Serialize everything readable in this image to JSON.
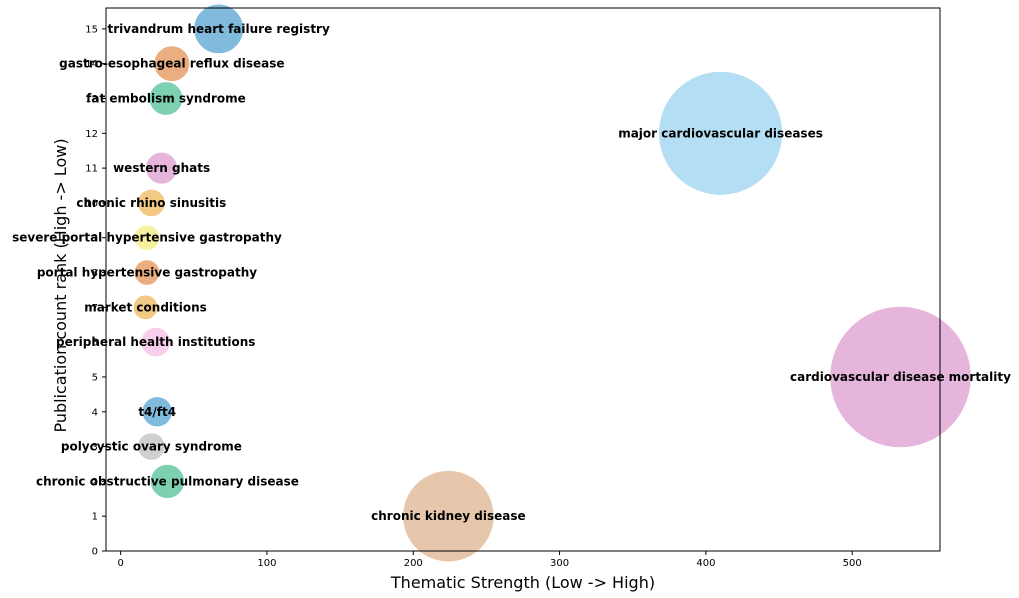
{
  "chart_data": {
    "type": "scatter",
    "title": "",
    "xlabel": "Thematic Strength (Low -> High)",
    "ylabel": "Publication count rank (High -> Low)",
    "xlim": [
      -10,
      560
    ],
    "ylim": [
      0,
      15.6
    ],
    "xticks": [
      0,
      100,
      200,
      300,
      400,
      500
    ],
    "yticks": [
      0,
      1,
      2,
      3,
      4,
      5,
      6,
      7,
      8,
      9,
      10,
      11,
      12,
      13,
      14,
      15
    ],
    "grid": false,
    "bubble_size_encodes": "thematic strength",
    "points": [
      {
        "label": "trivandrum heart failure registry",
        "x": 67,
        "y": 15,
        "color": "#6aaed6"
      },
      {
        "label": "gastro-esophageal reflux disease",
        "x": 35,
        "y": 14,
        "color": "#e8a06a"
      },
      {
        "label": "fat embolism syndrome",
        "x": 31,
        "y": 13,
        "color": "#66c9a2"
      },
      {
        "label": "major cardiovascular diseases",
        "x": 410,
        "y": 12,
        "color": "#a6d8f2"
      },
      {
        "label": "western ghats",
        "x": 28,
        "y": 11,
        "color": "#e0a8d6"
      },
      {
        "label": "chronic rhino sinusitis",
        "x": 21,
        "y": 10,
        "color": "#f0c070"
      },
      {
        "label": "severe portal hypertensive gastropathy",
        "x": 18,
        "y": 9,
        "color": "#f6ee8e"
      },
      {
        "label": "portal hypertensive gastropathy",
        "x": 18,
        "y": 8,
        "color": "#e8a06a"
      },
      {
        "label": "market conditions",
        "x": 17,
        "y": 7,
        "color": "#f0c070"
      },
      {
        "label": "peripheral health institutions",
        "x": 24,
        "y": 6,
        "color": "#f7c6ea"
      },
      {
        "label": "cardiovascular disease mortality",
        "x": 533,
        "y": 5,
        "color": "#e0a8d6"
      },
      {
        "label": "t4/ft4",
        "x": 25,
        "y": 4,
        "color": "#6aaed6"
      },
      {
        "label": "polycystic ovary syndrome",
        "x": 21,
        "y": 3,
        "color": "#c8c8c8"
      },
      {
        "label": "chronic obstructive pulmonary disease",
        "x": 32,
        "y": 2,
        "color": "#66c9a2"
      },
      {
        "label": "chronic kidney disease",
        "x": 224,
        "y": 1,
        "color": "#e3bd9c"
      }
    ]
  }
}
